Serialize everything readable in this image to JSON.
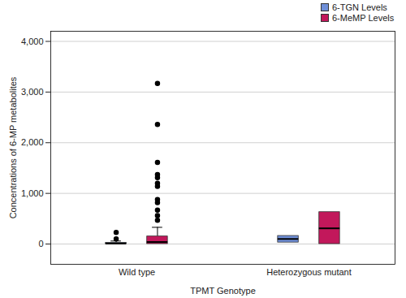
{
  "chart_data": {
    "type": "boxplot",
    "x_label": "TPMT Genotype",
    "y_label": "Concentrations of 6-MP metabolites",
    "categories": [
      "Wild type",
      "Heterozygous mutant"
    ],
    "series": [
      {
        "name": "6-TGN Levels",
        "color": "#6f8fd8",
        "boxes": [
          {
            "min": 0,
            "q1": 0,
            "median": 10,
            "q3": 25,
            "max": 60,
            "outliers": [
              100,
              230
            ]
          },
          {
            "min": 30,
            "q1": 30,
            "median": 100,
            "q3": 160,
            "max": 160,
            "outliers": []
          }
        ]
      },
      {
        "name": "6-MeMP Levels",
        "color": "#c2185b",
        "boxes": [
          {
            "min": 0,
            "q1": 0,
            "median": 40,
            "q3": 150,
            "max": 330,
            "outliers": [
              470,
              560,
              670,
              820,
              880,
              1140,
              1200,
              1310,
              1370,
              1610,
              2360,
              3170
            ]
          },
          {
            "min": 0,
            "q1": 0,
            "median": 310,
            "q3": 630,
            "max": 630,
            "outliers": []
          }
        ]
      }
    ],
    "ylim": [
      -400,
      4200
    ],
    "yticks": [
      0,
      {
        "value": 1000,
        "label": "1,000"
      },
      {
        "value": 2000,
        "label": "2,000"
      },
      {
        "value": 3000,
        "label": "3,000"
      },
      {
        "value": 4000,
        "label": "4,000"
      }
    ],
    "grid": true,
    "legend": "top-right",
    "marker": "circle"
  }
}
